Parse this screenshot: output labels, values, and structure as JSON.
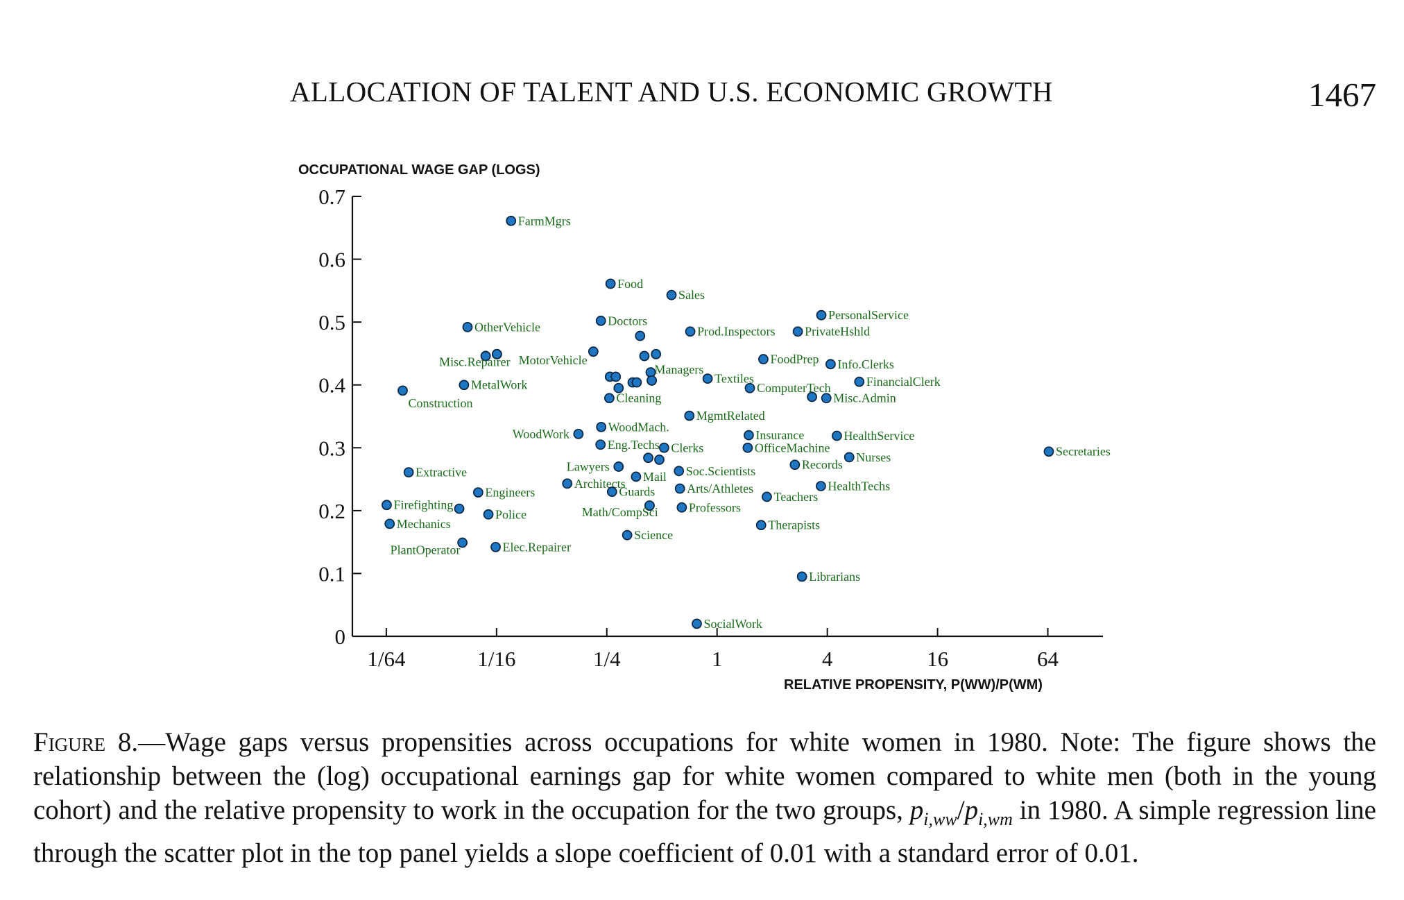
{
  "header": {
    "title": "ALLOCATION OF TALENT AND U.S. ECONOMIC GROWTH",
    "page_number": "1467"
  },
  "colors": {
    "marker_fill": "#1f77c4",
    "marker_stroke": "#0d2a45",
    "label_text": "#1a6b1a",
    "axis": "#111111"
  },
  "chart_data": {
    "type": "scatter",
    "title": "",
    "xlabel": "RELATIVE PROPENSITY, P(WW)/P(WM)",
    "ylabel": "OCCUPATIONAL WAGE GAP (LOGS)",
    "xscale": "log2",
    "xlim": [
      0.0102,
      128
    ],
    "ylim": [
      0,
      0.7
    ],
    "xticks": [
      0.015625,
      0.0625,
      0.25,
      1,
      4,
      16,
      64
    ],
    "xtick_labels": [
      "1/64",
      "1/16",
      "1/4",
      "1",
      "4",
      "16",
      "64"
    ],
    "yticks": [
      0,
      0.1,
      0.2,
      0.3,
      0.4,
      0.5,
      0.6,
      0.7
    ],
    "ytick_labels": [
      "0",
      "0.1",
      "0.2",
      "0.3",
      "0.4",
      "0.5",
      "0.6",
      "0.7"
    ],
    "grid": false,
    "points": [
      {
        "label": "FarmMgrs",
        "x": 0.075,
        "y": 0.661,
        "side": "right"
      },
      {
        "label": "Food",
        "x": 0.262,
        "y": 0.561,
        "side": "right"
      },
      {
        "label": "Sales",
        "x": 0.564,
        "y": 0.543,
        "side": "right"
      },
      {
        "label": "OtherVehicle",
        "x": 0.0434,
        "y": 0.492,
        "side": "right"
      },
      {
        "label": "Doctors",
        "x": 0.232,
        "y": 0.502,
        "side": "right"
      },
      {
        "label": "Prod.Inspectors",
        "x": 0.714,
        "y": 0.485,
        "side": "right"
      },
      {
        "label": "PrivateHshld",
        "x": 2.76,
        "y": 0.485,
        "side": "right"
      },
      {
        "label": "PersonalService",
        "x": 3.71,
        "y": 0.511,
        "side": "right"
      },
      {
        "label": "",
        "x": 0.38,
        "y": 0.478,
        "side": "right"
      },
      {
        "label": "",
        "x": 0.0545,
        "y": 0.446,
        "side": "right"
      },
      {
        "label": "",
        "x": 0.0628,
        "y": 0.449,
        "side": "right"
      },
      {
        "label": "",
        "x": 0.211,
        "y": 0.453,
        "side": "right"
      },
      {
        "label": "",
        "x": 0.401,
        "y": 0.446,
        "side": "right"
      },
      {
        "label": "",
        "x": 0.464,
        "y": 0.449,
        "side": "right"
      },
      {
        "label": "",
        "x": 0.434,
        "y": 0.42,
        "side": "right"
      },
      {
        "label": "",
        "x": 0.26,
        "y": 0.413,
        "side": "right"
      },
      {
        "label": "",
        "x": 0.28,
        "y": 0.413,
        "side": "right"
      },
      {
        "label": "",
        "x": 0.29,
        "y": 0.395,
        "side": "right"
      },
      {
        "label": "",
        "x": 0.346,
        "y": 0.404,
        "side": "right"
      },
      {
        "label": "",
        "x": 0.364,
        "y": 0.404,
        "side": "right"
      },
      {
        "label": "",
        "x": 0.44,
        "y": 0.407,
        "side": "right"
      },
      {
        "label": "Managers",
        "x": 0.44,
        "y": 0.407,
        "side": "none"
      },
      {
        "label": "Textiles",
        "x": 0.888,
        "y": 0.41,
        "side": "right"
      },
      {
        "label": "FoodPrep",
        "x": 1.79,
        "y": 0.441,
        "side": "right"
      },
      {
        "label": "Info.Clerks",
        "x": 4.17,
        "y": 0.433,
        "side": "right"
      },
      {
        "label": "FinancialClerk",
        "x": 5.98,
        "y": 0.405,
        "side": "right"
      },
      {
        "label": "ComputerTech",
        "x": 1.51,
        "y": 0.395,
        "side": "right"
      },
      {
        "label": "Misc.Admin",
        "x": 3.95,
        "y": 0.379,
        "side": "right"
      },
      {
        "label": "",
        "x": 3.3,
        "y": 0.381,
        "side": "right"
      },
      {
        "label": "Cleaning",
        "x": 0.258,
        "y": 0.379,
        "side": "right"
      },
      {
        "label": "MetalWork",
        "x": 0.0415,
        "y": 0.4,
        "side": "right"
      },
      {
        "label": "Construction",
        "x": 0.0192,
        "y": 0.391,
        "side": "below"
      },
      {
        "label": "Misc.Repairer",
        "x": 0.0545,
        "y": 0.446,
        "side": "none"
      },
      {
        "label": "MotorVehicle",
        "x": 0.0628,
        "y": 0.449,
        "side": "none"
      },
      {
        "label": "MgmtRelated",
        "x": 0.706,
        "y": 0.351,
        "side": "right"
      },
      {
        "label": "WoodMach.",
        "x": 0.233,
        "y": 0.333,
        "side": "right"
      },
      {
        "label": "WoodWork",
        "x": 0.175,
        "y": 0.322,
        "side": "left"
      },
      {
        "label": "Insurance",
        "x": 1.49,
        "y": 0.32,
        "side": "right"
      },
      {
        "label": "HealthService",
        "x": 4.51,
        "y": 0.319,
        "side": "right"
      },
      {
        "label": "Eng.Techs",
        "x": 0.231,
        "y": 0.305,
        "side": "right"
      },
      {
        "label": "Clerks",
        "x": 0.514,
        "y": 0.3,
        "side": "right"
      },
      {
        "label": "OfficeMachine",
        "x": 1.47,
        "y": 0.3,
        "side": "right"
      },
      {
        "label": "Secretaries",
        "x": 64.8,
        "y": 0.294,
        "side": "right"
      },
      {
        "label": "Nurses",
        "x": 5.27,
        "y": 0.285,
        "side": "right"
      },
      {
        "label": "",
        "x": 0.421,
        "y": 0.284,
        "side": "right"
      },
      {
        "label": "",
        "x": 0.484,
        "y": 0.281,
        "side": "right"
      },
      {
        "label": "Records",
        "x": 2.66,
        "y": 0.273,
        "side": "right"
      },
      {
        "label": "Lawyers",
        "x": 0.29,
        "y": 0.27,
        "side": "left"
      },
      {
        "label": "Extractive",
        "x": 0.0207,
        "y": 0.261,
        "side": "right"
      },
      {
        "label": "Soc.Scientists",
        "x": 0.619,
        "y": 0.263,
        "side": "right"
      },
      {
        "label": "Mail",
        "x": 0.361,
        "y": 0.254,
        "side": "right"
      },
      {
        "label": "Architects",
        "x": 0.152,
        "y": 0.243,
        "side": "right"
      },
      {
        "label": "HealthTechs",
        "x": 3.69,
        "y": 0.239,
        "side": "right"
      },
      {
        "label": "Arts/Athletes",
        "x": 0.627,
        "y": 0.235,
        "side": "right"
      },
      {
        "label": "Engineers",
        "x": 0.0496,
        "y": 0.229,
        "side": "right"
      },
      {
        "label": "Guards",
        "x": 0.267,
        "y": 0.23,
        "side": "right"
      },
      {
        "label": "Teachers",
        "x": 1.87,
        "y": 0.222,
        "side": "right"
      },
      {
        "label": "",
        "x": 0.428,
        "y": 0.208,
        "side": "right"
      },
      {
        "label": "Math/CompSci",
        "x": 0.428,
        "y": 0.208,
        "side": "none"
      },
      {
        "label": "Firefighting",
        "x": 0.0157,
        "y": 0.209,
        "side": "right"
      },
      {
        "label": "",
        "x": 0.0391,
        "y": 0.203,
        "side": "right"
      },
      {
        "label": "Professors",
        "x": 0.642,
        "y": 0.205,
        "side": "right"
      },
      {
        "label": "Police",
        "x": 0.0564,
        "y": 0.194,
        "side": "right"
      },
      {
        "label": "Mechanics",
        "x": 0.0163,
        "y": 0.179,
        "side": "right"
      },
      {
        "label": "Therapists",
        "x": 1.74,
        "y": 0.177,
        "side": "right"
      },
      {
        "label": "Science",
        "x": 0.323,
        "y": 0.161,
        "side": "right"
      },
      {
        "label": "PlantOperator",
        "x": 0.0407,
        "y": 0.149,
        "side": "none"
      },
      {
        "label": "Elec.Repairer",
        "x": 0.0618,
        "y": 0.142,
        "side": "right"
      },
      {
        "label": "Librarians",
        "x": 2.91,
        "y": 0.095,
        "side": "right"
      },
      {
        "label": "SocialWork",
        "x": 0.775,
        "y": 0.02,
        "side": "right"
      }
    ],
    "free_labels": [
      {
        "text": "Misc.Repairer",
        "x": 0.0475,
        "y": 0.43,
        "anchor": "middle"
      },
      {
        "text": "MotorVehicle",
        "x": 0.127,
        "y": 0.433,
        "anchor": "middle"
      },
      {
        "text": "Managers",
        "x": 0.62,
        "y": 0.418,
        "anchor": "middle"
      },
      {
        "text": "Math/CompSci",
        "x": 0.295,
        "y": 0.191,
        "anchor": "middle"
      },
      {
        "text": "PlantOperator",
        "x": 0.0255,
        "y": 0.131,
        "anchor": "middle"
      }
    ]
  },
  "caption": {
    "lead": "Figure 8.—",
    "text": "Wage gaps versus propensities across occupations for white women in 1980. Note: The figure shows the relationship between the (log) occupational earnings gap for white women compared to white men (both in the young cohort) and the relative propensity to work in the occupation for the two groups, ",
    "math_p": "p",
    "sub_ww": "i,ww",
    "slash": "/",
    "sub_wm": "i,wm",
    "tail": " in 1980. A simple regression line through the scatter plot in the top panel yields a slope coefficient of 0.01 with a standard error of 0.01."
  }
}
